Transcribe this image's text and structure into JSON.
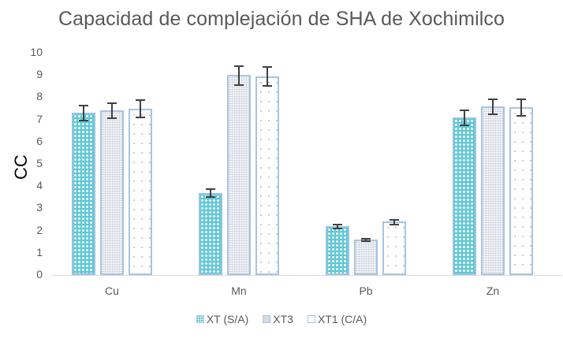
{
  "chart_data": {
    "type": "bar",
    "title": "Capacidad de complejación de SHA de Xochimilco",
    "xlabel": "",
    "ylabel": "CC",
    "ylim": [
      0,
      10
    ],
    "yticks": [
      0,
      1,
      2,
      3,
      4,
      5,
      6,
      7,
      8,
      9,
      10
    ],
    "grid": false,
    "legend_position": "bottom",
    "categories": [
      "Cu",
      "Mn",
      "Pb",
      "Zn"
    ],
    "series": [
      {
        "name": "XT (S/A)",
        "values": [
          7.3,
          3.7,
          2.2,
          7.1
        ],
        "errors": [
          0.35,
          0.2,
          0.12,
          0.35
        ],
        "pattern": "crosshatch",
        "color": "#5fc9d6"
      },
      {
        "name": "XT3",
        "values": [
          7.4,
          9.0,
          1.6,
          7.6
        ],
        "errors": [
          0.35,
          0.45,
          0.07,
          0.35
        ],
        "pattern": "fine-dots",
        "color": "#eef1f6"
      },
      {
        "name": "XT1 (C/A)",
        "values": [
          7.5,
          8.95,
          2.4,
          7.55
        ],
        "errors": [
          0.4,
          0.45,
          0.12,
          0.38
        ],
        "pattern": "sparse-dots",
        "color": "#ffffff"
      }
    ]
  },
  "labels": {
    "title": "Capacidad de complejación de SHA de Xochimilco",
    "ylabel": "CC",
    "yticks": [
      "0",
      "1",
      "2",
      "3",
      "4",
      "5",
      "6",
      "7",
      "8",
      "9",
      "10"
    ],
    "categories": [
      "Cu",
      "Mn",
      "Pb",
      "Zn"
    ],
    "legend": [
      "XT (S/A)",
      "XT3",
      "XT1 (C/A)"
    ]
  }
}
